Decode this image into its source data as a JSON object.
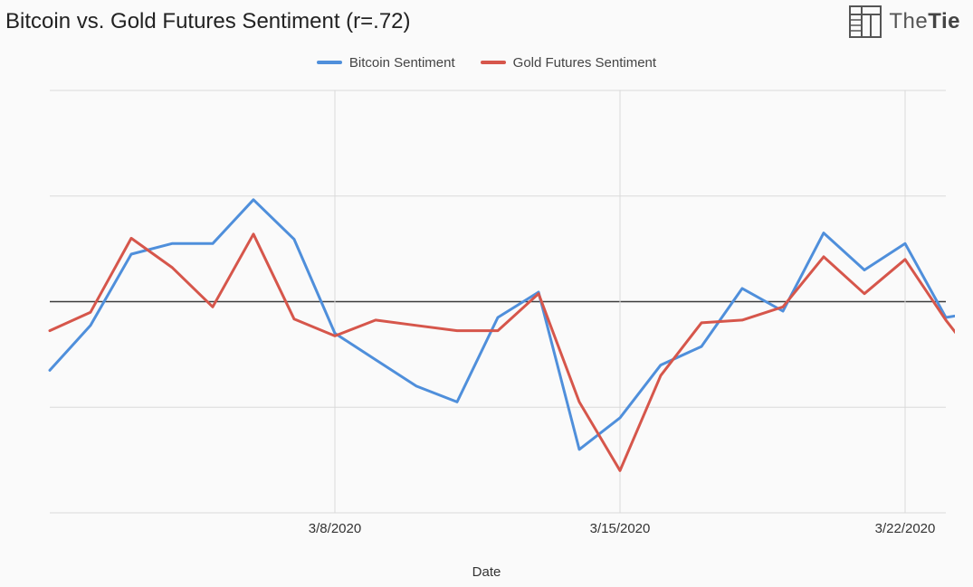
{
  "title": "Bitcoin vs. Gold Futures Sentiment (r=.72)",
  "brand": {
    "light": "The",
    "bold": "Tie"
  },
  "xlabel": "Date",
  "legend": [
    {
      "label": "Bitcoin Sentiment",
      "color": "#4f8fdb"
    },
    {
      "label": "Gold Futures Sentiment",
      "color": "#d6564b"
    }
  ],
  "chart": {
    "type": "line",
    "background_color": "#fafafa",
    "grid_color": "#d9d9d9",
    "zero_line_color": "#3a3a3a",
    "axis_font_size": 15,
    "title_font_size": 24,
    "line_width": 3,
    "ylim": [
      -4,
      4
    ],
    "yticks": [
      -4,
      -2,
      0,
      2,
      4
    ],
    "x_index_range": [
      0,
      22
    ],
    "x_vgrid_indices": [
      7,
      14,
      21
    ],
    "x_tick_labels": [
      {
        "index": 7,
        "label": "3/8/2020"
      },
      {
        "index": 14,
        "label": "3/15/2020"
      },
      {
        "index": 21,
        "label": "3/22/2020"
      }
    ],
    "series": [
      {
        "name": "Bitcoin Sentiment",
        "color": "#4f8fdb",
        "y": [
          -1.3,
          -0.45,
          0.9,
          1.1,
          1.1,
          1.93,
          1.18,
          -0.6,
          -1.1,
          -1.6,
          -1.9,
          -0.3,
          0.18,
          -2.8,
          -2.2,
          -1.2,
          -0.85,
          0.25,
          -0.18,
          1.3,
          0.6,
          1.1,
          -0.3
        ]
      },
      {
        "name": "Gold Futures Sentiment",
        "color": "#d6564b",
        "y": [
          -0.55,
          -0.2,
          1.2,
          0.65,
          -0.1,
          1.28,
          -0.33,
          -0.65,
          -0.35,
          -0.45,
          -0.55,
          -0.55,
          0.15,
          -1.9,
          -3.2,
          -1.4,
          -0.4,
          -0.35,
          -0.1,
          0.85,
          0.15,
          0.8,
          -0.35
        ]
      }
    ],
    "series_overrides": {
      "Bitcoin Sentiment": {
        "trailing": [
          {
            "dx": 0.4,
            "y": -0.25
          }
        ]
      },
      "Gold Futures Sentiment": {
        "trailing": [
          {
            "dx": 0.25,
            "y": -0.6
          },
          {
            "dx": 0.55,
            "y": -0.35
          }
        ]
      }
    }
  }
}
